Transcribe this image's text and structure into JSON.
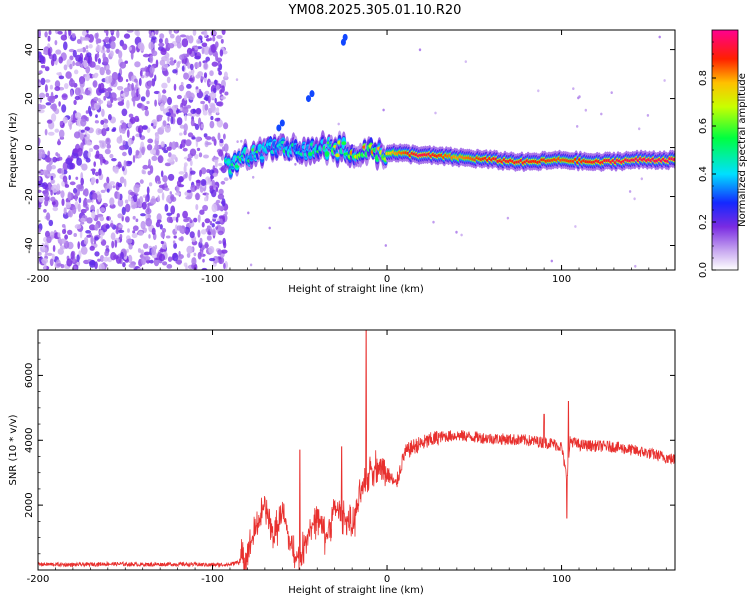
{
  "title": "YM08.2025.305.01.10.R20",
  "colors": {
    "signal": "#e8302e",
    "noise": "#7a2be2",
    "frame": "#000000"
  },
  "chart_data": [
    {
      "type": "heatmap",
      "xlabel": "Height of straight line (km)",
      "ylabel": "Frequency (Hz)",
      "xlim": [
        -200,
        165
      ],
      "ylim": [
        -50,
        48
      ],
      "xticks": [
        -200,
        -100,
        0,
        100
      ],
      "xtick_labels": [
        "-200",
        "-100",
        "0",
        "100"
      ],
      "yticks": [
        -40,
        -20,
        0,
        20,
        40
      ],
      "ytick_labels": [
        "-40",
        "-20",
        "0",
        "20",
        "40"
      ],
      "noise_region_x": [
        -200,
        -92
      ],
      "ridge": [
        {
          "x": -92,
          "y": -8,
          "amp": 0.55
        },
        {
          "x": -80,
          "y": -3,
          "amp": 0.5
        },
        {
          "x": -65,
          "y": -1,
          "amp": 0.45
        },
        {
          "x": -50,
          "y": 0,
          "amp": 0.45
        },
        {
          "x": -35,
          "y": 0,
          "amp": 0.55
        },
        {
          "x": -20,
          "y": -1,
          "amp": 0.7
        },
        {
          "x": 0,
          "y": -2,
          "amp": 0.75
        },
        {
          "x": 20,
          "y": -3,
          "amp": 0.95
        },
        {
          "x": 40,
          "y": -4,
          "amp": 0.8
        },
        {
          "x": 60,
          "y": -5,
          "amp": 0.9
        },
        {
          "x": 80,
          "y": -6,
          "amp": 0.9
        },
        {
          "x": 100,
          "y": -5,
          "amp": 0.85
        },
        {
          "x": 120,
          "y": -6,
          "amp": 0.9
        },
        {
          "x": 145,
          "y": -5,
          "amp": 0.95
        },
        {
          "x": 165,
          "y": -5,
          "amp": 0.95
        }
      ],
      "colorbar": {
        "label": "Normalized spectral amplitude",
        "range": [
          0,
          1
        ],
        "ticks": [
          0.0,
          0.2,
          0.4,
          0.6,
          0.8
        ],
        "tick_labels": [
          "0.0",
          "0.2",
          "0.4",
          "0.6",
          "0.8"
        ]
      }
    },
    {
      "type": "line",
      "xlabel": "Height of straight line (km)",
      "ylabel": "SNR (10 * v/v)",
      "xlim": [
        -200,
        165
      ],
      "ylim": [
        0,
        7400
      ],
      "xticks": [
        -200,
        -100,
        0,
        100
      ],
      "xtick_labels": [
        "-200",
        "-100",
        "0",
        "100"
      ],
      "yticks": [
        2000,
        4000,
        6000
      ],
      "ytick_labels": [
        "2000",
        "4000",
        "6000"
      ],
      "series": [
        {
          "name": "SNR",
          "x": [
            -200,
            -180,
            -160,
            -140,
            -120,
            -100,
            -90,
            -85,
            -80,
            -75,
            -70,
            -65,
            -60,
            -55,
            -50,
            -45,
            -40,
            -35,
            -30,
            -25,
            -20,
            -17,
            -15,
            -12,
            -10,
            -5,
            0,
            5,
            10,
            15,
            20,
            30,
            40,
            60,
            80,
            95,
            100,
            103,
            105,
            110,
            130,
            150,
            165
          ],
          "values": [
            180,
            160,
            190,
            170,
            180,
            160,
            170,
            250,
            500,
            1300,
            2000,
            1000,
            1800,
            700,
            300,
            1200,
            1600,
            1000,
            1900,
            1700,
            1300,
            1900,
            2400,
            2600,
            3100,
            3200,
            3000,
            2600,
            3600,
            3800,
            3900,
            4100,
            4150,
            4050,
            4000,
            3900,
            3800,
            2800,
            4000,
            3850,
            3800,
            3600,
            3400
          ],
          "spikes": [
            {
              "x": -12,
              "value": 7400
            },
            {
              "x": -26,
              "value": 3800
            },
            {
              "x": -50,
              "value": 3700
            },
            {
              "x": 104,
              "value": 5200
            },
            {
              "x": 103,
              "value": 1600
            },
            {
              "x": 90,
              "value": 4800
            }
          ]
        }
      ]
    }
  ]
}
